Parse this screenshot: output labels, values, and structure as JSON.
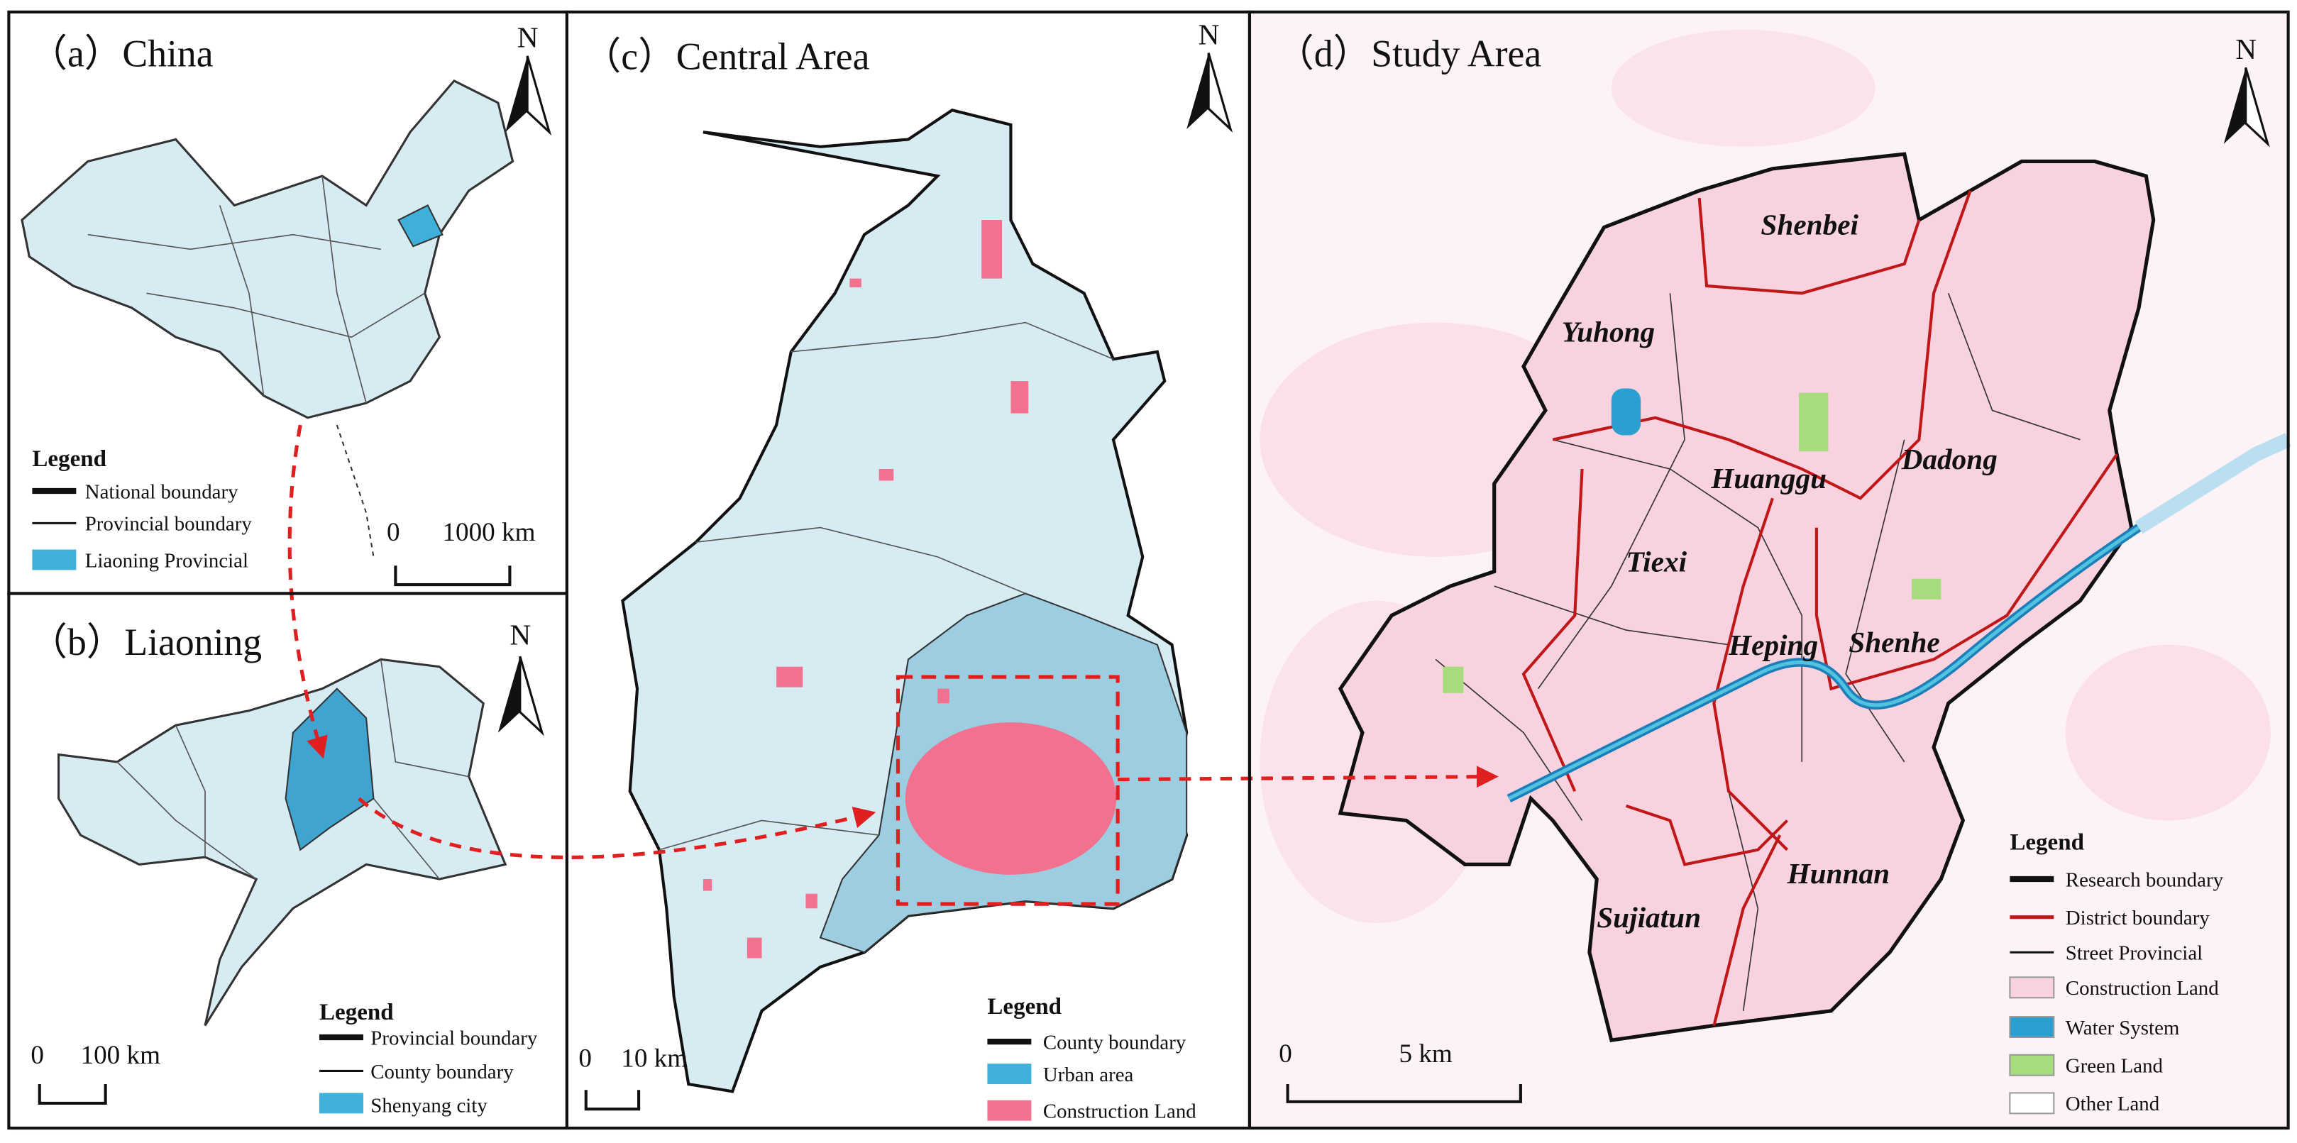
{
  "panels": [
    {
      "title": "（a）China",
      "north": "N",
      "legend": {
        "title": "Legend",
        "items": [
          "National boundary",
          "Provincial boundary",
          "Liaoning Provincial"
        ]
      },
      "scale": [
        "0",
        "1000 km"
      ]
    },
    {
      "title": "（b）Liaoning",
      "north": "N",
      "legend": {
        "title": "Legend",
        "items": [
          "Provincial boundary",
          "County boundary",
          "Shenyang city"
        ]
      },
      "scale": [
        "0",
        "100 km"
      ]
    },
    {
      "title": "（c）Central Area",
      "north": "N",
      "legend": {
        "title": "Legend",
        "items": [
          "County boundary",
          "Urban area",
          "Construction Land"
        ]
      },
      "scale": [
        "0",
        "10 km"
      ]
    },
    {
      "title": "（d）Study Area",
      "north": "N",
      "legend": {
        "title": "Legend",
        "items": [
          "Research boundary",
          "District boundary",
          "Street Provincial",
          "Construction Land",
          "Water System",
          "Green Land",
          "Other Land"
        ]
      },
      "scale": [
        "0",
        "5 km"
      ]
    }
  ],
  "districts": [
    "Shenbei",
    "Yuhong",
    "Huanggu",
    "Dadong",
    "Tiexi",
    "Heping",
    "Shenhe",
    "Hunnan",
    "Sujiatun"
  ]
}
